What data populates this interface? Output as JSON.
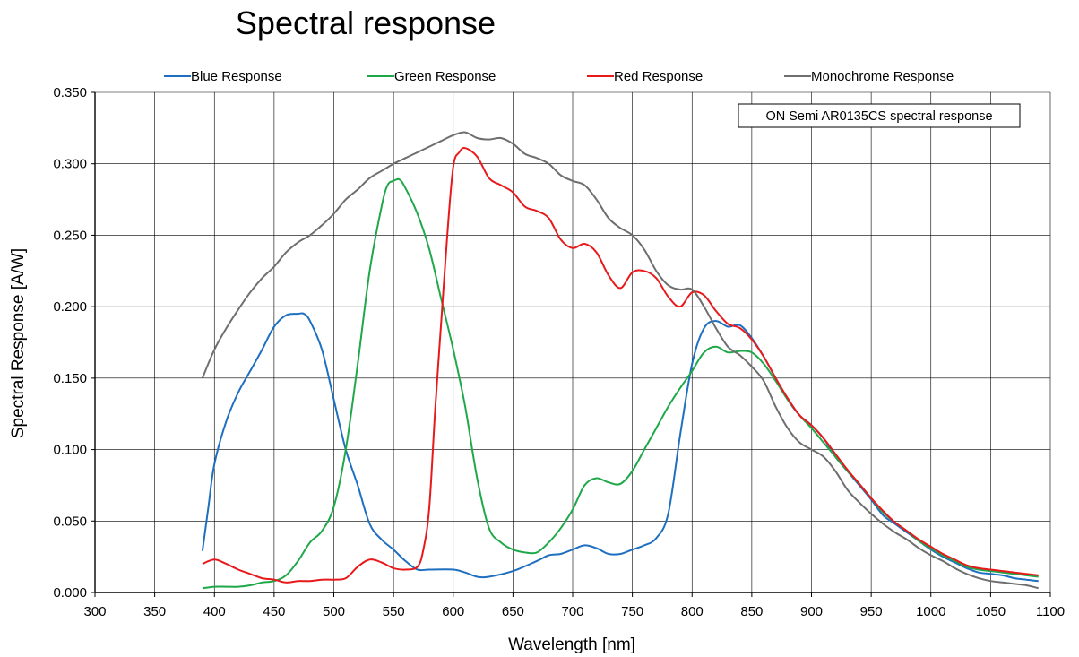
{
  "chart_data": {
    "type": "line",
    "title": "Spectral response",
    "xlabel": "Wavelength [nm]",
    "ylabel": "Spectral Response [A/W]",
    "xlim": [
      300,
      1100
    ],
    "ylim": [
      0,
      0.35
    ],
    "xticks": [
      300,
      350,
      400,
      450,
      500,
      550,
      600,
      650,
      700,
      750,
      800,
      850,
      900,
      950,
      1000,
      1050,
      1100
    ],
    "yticks": [
      0,
      0.05,
      0.1,
      0.15,
      0.2,
      0.25,
      0.3,
      0.35
    ],
    "xtick_labels": [
      "300",
      "350",
      "400",
      "450",
      "500",
      "550",
      "600",
      "650",
      "700",
      "750",
      "800",
      "850",
      "900",
      "950",
      "1000",
      "1050",
      "1100"
    ],
    "ytick_labels": [
      "0.000",
      "0.050",
      "0.100",
      "0.150",
      "0.200",
      "0.250",
      "0.300",
      "0.350"
    ],
    "grid": true,
    "legend_position": "top",
    "annotation": "ON Semi AR0135CS spectral response",
    "series": [
      {
        "name": "Blue Response",
        "color": "#1f6fc0",
        "points": [
          [
            390,
            0.029
          ],
          [
            395,
            0.06
          ],
          [
            400,
            0.09
          ],
          [
            410,
            0.12
          ],
          [
            420,
            0.14
          ],
          [
            430,
            0.155
          ],
          [
            440,
            0.17
          ],
          [
            450,
            0.186
          ],
          [
            460,
            0.194
          ],
          [
            470,
            0.195
          ],
          [
            475,
            0.195
          ],
          [
            480,
            0.19
          ],
          [
            490,
            0.17
          ],
          [
            500,
            0.135
          ],
          [
            510,
            0.1
          ],
          [
            520,
            0.075
          ],
          [
            530,
            0.048
          ],
          [
            540,
            0.037
          ],
          [
            550,
            0.03
          ],
          [
            560,
            0.022
          ],
          [
            570,
            0.016
          ],
          [
            580,
            0.016
          ],
          [
            600,
            0.016
          ],
          [
            610,
            0.014
          ],
          [
            620,
            0.011
          ],
          [
            630,
            0.011
          ],
          [
            650,
            0.015
          ],
          [
            670,
            0.022
          ],
          [
            680,
            0.026
          ],
          [
            690,
            0.027
          ],
          [
            700,
            0.03
          ],
          [
            710,
            0.033
          ],
          [
            720,
            0.031
          ],
          [
            730,
            0.027
          ],
          [
            740,
            0.027
          ],
          [
            750,
            0.03
          ],
          [
            760,
            0.033
          ],
          [
            770,
            0.038
          ],
          [
            780,
            0.055
          ],
          [
            790,
            0.11
          ],
          [
            800,
            0.16
          ],
          [
            810,
            0.185
          ],
          [
            820,
            0.19
          ],
          [
            830,
            0.186
          ],
          [
            840,
            0.187
          ],
          [
            850,
            0.178
          ],
          [
            860,
            0.165
          ],
          [
            870,
            0.15
          ],
          [
            880,
            0.135
          ],
          [
            890,
            0.124
          ],
          [
            900,
            0.117
          ],
          [
            910,
            0.108
          ],
          [
            920,
            0.095
          ],
          [
            930,
            0.085
          ],
          [
            940,
            0.075
          ],
          [
            950,
            0.065
          ],
          [
            960,
            0.054
          ],
          [
            970,
            0.048
          ],
          [
            980,
            0.042
          ],
          [
            990,
            0.036
          ],
          [
            1000,
            0.03
          ],
          [
            1010,
            0.025
          ],
          [
            1020,
            0.021
          ],
          [
            1030,
            0.017
          ],
          [
            1040,
            0.014
          ],
          [
            1050,
            0.013
          ],
          [
            1060,
            0.012
          ],
          [
            1070,
            0.01
          ],
          [
            1080,
            0.009
          ],
          [
            1090,
            0.008
          ]
        ]
      },
      {
        "name": "Green Response",
        "color": "#1fa84a",
        "points": [
          [
            390,
            0.003
          ],
          [
            400,
            0.004
          ],
          [
            410,
            0.004
          ],
          [
            420,
            0.004
          ],
          [
            430,
            0.005
          ],
          [
            440,
            0.007
          ],
          [
            450,
            0.008
          ],
          [
            460,
            0.012
          ],
          [
            470,
            0.022
          ],
          [
            480,
            0.035
          ],
          [
            490,
            0.043
          ],
          [
            500,
            0.06
          ],
          [
            510,
            0.1
          ],
          [
            520,
            0.16
          ],
          [
            530,
            0.225
          ],
          [
            540,
            0.27
          ],
          [
            545,
            0.285
          ],
          [
            550,
            0.288
          ],
          [
            555,
            0.289
          ],
          [
            560,
            0.283
          ],
          [
            570,
            0.265
          ],
          [
            580,
            0.24
          ],
          [
            590,
            0.205
          ],
          [
            600,
            0.17
          ],
          [
            610,
            0.13
          ],
          [
            620,
            0.08
          ],
          [
            630,
            0.045
          ],
          [
            640,
            0.035
          ],
          [
            650,
            0.03
          ],
          [
            660,
            0.028
          ],
          [
            670,
            0.028
          ],
          [
            680,
            0.035
          ],
          [
            690,
            0.045
          ],
          [
            700,
            0.058
          ],
          [
            710,
            0.075
          ],
          [
            720,
            0.08
          ],
          [
            730,
            0.077
          ],
          [
            740,
            0.076
          ],
          [
            750,
            0.085
          ],
          [
            760,
            0.1
          ],
          [
            770,
            0.115
          ],
          [
            780,
            0.13
          ],
          [
            790,
            0.143
          ],
          [
            800,
            0.155
          ],
          [
            810,
            0.168
          ],
          [
            820,
            0.172
          ],
          [
            830,
            0.168
          ],
          [
            840,
            0.169
          ],
          [
            850,
            0.168
          ],
          [
            860,
            0.16
          ],
          [
            870,
            0.148
          ],
          [
            880,
            0.135
          ],
          [
            890,
            0.124
          ],
          [
            900,
            0.115
          ],
          [
            910,
            0.105
          ],
          [
            920,
            0.095
          ],
          [
            930,
            0.085
          ],
          [
            940,
            0.076
          ],
          [
            950,
            0.066
          ],
          [
            960,
            0.056
          ],
          [
            970,
            0.049
          ],
          [
            980,
            0.043
          ],
          [
            990,
            0.036
          ],
          [
            1000,
            0.031
          ],
          [
            1010,
            0.026
          ],
          [
            1020,
            0.022
          ],
          [
            1030,
            0.018
          ],
          [
            1040,
            0.016
          ],
          [
            1050,
            0.015
          ],
          [
            1060,
            0.014
          ],
          [
            1070,
            0.013
          ],
          [
            1080,
            0.012
          ],
          [
            1090,
            0.011
          ]
        ]
      },
      {
        "name": "Red Response",
        "color": "#e8191b",
        "points": [
          [
            390,
            0.02
          ],
          [
            400,
            0.023
          ],
          [
            410,
            0.02
          ],
          [
            420,
            0.016
          ],
          [
            430,
            0.013
          ],
          [
            440,
            0.01
          ],
          [
            450,
            0.009
          ],
          [
            460,
            0.007
          ],
          [
            470,
            0.008
          ],
          [
            480,
            0.008
          ],
          [
            490,
            0.009
          ],
          [
            500,
            0.009
          ],
          [
            510,
            0.01
          ],
          [
            520,
            0.018
          ],
          [
            530,
            0.023
          ],
          [
            540,
            0.021
          ],
          [
            550,
            0.017
          ],
          [
            560,
            0.016
          ],
          [
            570,
            0.018
          ],
          [
            575,
            0.03
          ],
          [
            580,
            0.06
          ],
          [
            585,
            0.13
          ],
          [
            590,
            0.19
          ],
          [
            595,
            0.25
          ],
          [
            600,
            0.298
          ],
          [
            605,
            0.308
          ],
          [
            610,
            0.311
          ],
          [
            620,
            0.305
          ],
          [
            630,
            0.29
          ],
          [
            640,
            0.285
          ],
          [
            650,
            0.28
          ],
          [
            660,
            0.27
          ],
          [
            670,
            0.267
          ],
          [
            680,
            0.262
          ],
          [
            690,
            0.247
          ],
          [
            700,
            0.241
          ],
          [
            710,
            0.244
          ],
          [
            720,
            0.238
          ],
          [
            730,
            0.222
          ],
          [
            740,
            0.213
          ],
          [
            750,
            0.224
          ],
          [
            760,
            0.225
          ],
          [
            770,
            0.22
          ],
          [
            780,
            0.207
          ],
          [
            790,
            0.2
          ],
          [
            800,
            0.21
          ],
          [
            810,
            0.208
          ],
          [
            820,
            0.197
          ],
          [
            830,
            0.188
          ],
          [
            840,
            0.185
          ],
          [
            850,
            0.177
          ],
          [
            860,
            0.165
          ],
          [
            870,
            0.15
          ],
          [
            880,
            0.136
          ],
          [
            890,
            0.124
          ],
          [
            900,
            0.117
          ],
          [
            910,
            0.108
          ],
          [
            920,
            0.097
          ],
          [
            930,
            0.086
          ],
          [
            940,
            0.076
          ],
          [
            950,
            0.066
          ],
          [
            960,
            0.057
          ],
          [
            970,
            0.049
          ],
          [
            980,
            0.043
          ],
          [
            990,
            0.037
          ],
          [
            1000,
            0.032
          ],
          [
            1010,
            0.027
          ],
          [
            1020,
            0.023
          ],
          [
            1030,
            0.019
          ],
          [
            1040,
            0.017
          ],
          [
            1050,
            0.016
          ],
          [
            1060,
            0.015
          ],
          [
            1070,
            0.014
          ],
          [
            1080,
            0.013
          ],
          [
            1090,
            0.012
          ]
        ]
      },
      {
        "name": "Monochrome Response",
        "color": "#6e6e6e",
        "points": [
          [
            390,
            0.15
          ],
          [
            400,
            0.17
          ],
          [
            410,
            0.185
          ],
          [
            420,
            0.198
          ],
          [
            430,
            0.21
          ],
          [
            440,
            0.22
          ],
          [
            450,
            0.228
          ],
          [
            460,
            0.238
          ],
          [
            470,
            0.245
          ],
          [
            480,
            0.25
          ],
          [
            490,
            0.257
          ],
          [
            500,
            0.265
          ],
          [
            510,
            0.275
          ],
          [
            520,
            0.282
          ],
          [
            530,
            0.29
          ],
          [
            540,
            0.295
          ],
          [
            550,
            0.3
          ],
          [
            560,
            0.304
          ],
          [
            570,
            0.308
          ],
          [
            580,
            0.312
          ],
          [
            590,
            0.316
          ],
          [
            600,
            0.32
          ],
          [
            610,
            0.322
          ],
          [
            620,
            0.318
          ],
          [
            630,
            0.317
          ],
          [
            640,
            0.318
          ],
          [
            650,
            0.314
          ],
          [
            660,
            0.307
          ],
          [
            670,
            0.304
          ],
          [
            680,
            0.3
          ],
          [
            690,
            0.292
          ],
          [
            700,
            0.288
          ],
          [
            710,
            0.285
          ],
          [
            720,
            0.275
          ],
          [
            730,
            0.262
          ],
          [
            740,
            0.255
          ],
          [
            750,
            0.25
          ],
          [
            760,
            0.24
          ],
          [
            770,
            0.225
          ],
          [
            780,
            0.215
          ],
          [
            790,
            0.212
          ],
          [
            800,
            0.212
          ],
          [
            810,
            0.2
          ],
          [
            820,
            0.185
          ],
          [
            830,
            0.172
          ],
          [
            840,
            0.166
          ],
          [
            850,
            0.158
          ],
          [
            860,
            0.148
          ],
          [
            870,
            0.13
          ],
          [
            880,
            0.115
          ],
          [
            890,
            0.105
          ],
          [
            900,
            0.1
          ],
          [
            910,
            0.095
          ],
          [
            920,
            0.085
          ],
          [
            930,
            0.072
          ],
          [
            940,
            0.063
          ],
          [
            950,
            0.055
          ],
          [
            960,
            0.048
          ],
          [
            970,
            0.042
          ],
          [
            980,
            0.037
          ],
          [
            990,
            0.031
          ],
          [
            1000,
            0.026
          ],
          [
            1010,
            0.022
          ],
          [
            1020,
            0.017
          ],
          [
            1030,
            0.013
          ],
          [
            1040,
            0.01
          ],
          [
            1050,
            0.008
          ],
          [
            1060,
            0.007
          ],
          [
            1070,
            0.006
          ],
          [
            1080,
            0.005
          ],
          [
            1090,
            0.003
          ]
        ]
      }
    ]
  }
}
